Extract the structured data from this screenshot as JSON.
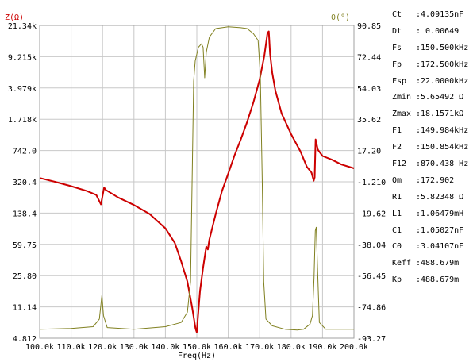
{
  "chart_data": {
    "type": "line",
    "xlabel": "Freq(Hz)",
    "x_ticks": [
      "100.0k",
      "110.0k",
      "120.0k",
      "130.0k",
      "140.0k",
      "150.0k",
      "160.0k",
      "170.0k",
      "180.0k",
      "190.0k",
      "200.0k"
    ],
    "xlim": [
      100000,
      200000
    ],
    "left_axis": {
      "label": "Z(Ω)",
      "scale": "log",
      "ticks": [
        "21.34k",
        "9.215k",
        "3.979k",
        "1.718k",
        "742.0",
        "320.4",
        "138.4",
        "59.75",
        "25.80",
        "11.14",
        "4.812"
      ],
      "ylim": [
        4.812,
        21340
      ],
      "color": "#cc0000"
    },
    "right_axis": {
      "label": "θ(°)",
      "scale": "linear",
      "ticks": [
        "90.85",
        "72.44",
        "54.03",
        "35.62",
        "17.20",
        "-1.210",
        "-19.62",
        "-38.04",
        "-56.45",
        "-74.86",
        "-93.27"
      ],
      "ylim": [
        -93.27,
        90.85
      ],
      "color": "#808020"
    },
    "grid": true,
    "series": [
      {
        "axis": "left",
        "color": "#cc0000",
        "points": [
          [
            100000,
            355
          ],
          [
            105000,
            320
          ],
          [
            110000,
            285
          ],
          [
            115000,
            250
          ],
          [
            118000,
            225
          ],
          [
            119500,
            175
          ],
          [
            120500,
            275
          ],
          [
            121000,
            258
          ],
          [
            125000,
            210
          ],
          [
            130000,
            172
          ],
          [
            135000,
            135
          ],
          [
            140000,
            92
          ],
          [
            143000,
            62
          ],
          [
            145000,
            38
          ],
          [
            147000,
            22
          ],
          [
            148500,
            11
          ],
          [
            149600,
            6.2
          ],
          [
            149984,
            5.65
          ],
          [
            150500,
            10
          ],
          [
            151000,
            17
          ],
          [
            152000,
            32
          ],
          [
            153000,
            56
          ],
          [
            153500,
            52
          ],
          [
            154000,
            68
          ],
          [
            156000,
            135
          ],
          [
            158000,
            250
          ],
          [
            160000,
            400
          ],
          [
            162000,
            650
          ],
          [
            164000,
            1000
          ],
          [
            166000,
            1600
          ],
          [
            168000,
            2700
          ],
          [
            170000,
            5000
          ],
          [
            171500,
            9500
          ],
          [
            172500,
            17500
          ],
          [
            172900,
            18157
          ],
          [
            173300,
            10000
          ],
          [
            174000,
            6000
          ],
          [
            175000,
            3700
          ],
          [
            177000,
            2000
          ],
          [
            180000,
            1150
          ],
          [
            183000,
            720
          ],
          [
            185000,
            480
          ],
          [
            186500,
            410
          ],
          [
            187200,
            330
          ],
          [
            187500,
            360
          ],
          [
            187800,
            1000
          ],
          [
            188500,
            760
          ],
          [
            190000,
            640
          ],
          [
            193000,
            580
          ],
          [
            196000,
            510
          ],
          [
            200000,
            460
          ]
        ]
      },
      {
        "axis": "right",
        "color": "#808020",
        "points": [
          [
            100000,
            -88
          ],
          [
            110000,
            -87.5
          ],
          [
            117000,
            -86.5
          ],
          [
            119000,
            -82
          ],
          [
            119800,
            -68
          ],
          [
            120300,
            -80
          ],
          [
            121500,
            -87
          ],
          [
            130000,
            -88
          ],
          [
            140000,
            -86.5
          ],
          [
            145000,
            -84
          ],
          [
            147000,
            -78
          ],
          [
            148000,
            -60
          ],
          [
            148500,
            0
          ],
          [
            149000,
            58
          ],
          [
            149500,
            70
          ],
          [
            150500,
            78
          ],
          [
            151500,
            80
          ],
          [
            152000,
            78
          ],
          [
            152500,
            60
          ],
          [
            153000,
            75
          ],
          [
            154000,
            84
          ],
          [
            156000,
            89
          ],
          [
            160000,
            90
          ],
          [
            164000,
            89.5
          ],
          [
            166000,
            89
          ],
          [
            168000,
            86
          ],
          [
            169500,
            82
          ],
          [
            170200,
            62
          ],
          [
            170800,
            0
          ],
          [
            171300,
            -60
          ],
          [
            172000,
            -82
          ],
          [
            174000,
            -86
          ],
          [
            178000,
            -88
          ],
          [
            182000,
            -88.5
          ],
          [
            184000,
            -88
          ],
          [
            186000,
            -85
          ],
          [
            186800,
            -80
          ],
          [
            187300,
            -58
          ],
          [
            187700,
            -30
          ],
          [
            188000,
            -28
          ],
          [
            188400,
            -52
          ],
          [
            189000,
            -84
          ],
          [
            191000,
            -88
          ],
          [
            200000,
            -88
          ]
        ]
      }
    ]
  },
  "params": [
    {
      "name": "Ct",
      "value": ":4.09135nF"
    },
    {
      "name": "Dt",
      "value": ": 0.00649"
    },
    {
      "name": "Fs",
      "value": ":150.500kHz"
    },
    {
      "name": "Fp",
      "value": ":172.500kHz"
    },
    {
      "name": "Fsp",
      "value": ":22.0000kHz"
    },
    {
      "name": "Zmin",
      "value": ":5.65492 Ω"
    },
    {
      "name": "Zmax",
      "value": ":18.1571kΩ"
    },
    {
      "name": "F1",
      "value": ":149.984kHz"
    },
    {
      "name": "F2",
      "value": ":150.854kHz"
    },
    {
      "name": "F12",
      "value": ":870.438 Hz"
    },
    {
      "name": "Qm",
      "value": ":172.902"
    },
    {
      "name": "R1",
      "value": ":5.82348 Ω"
    },
    {
      "name": "L1",
      "value": ":1.06479mH"
    },
    {
      "name": "C1",
      "value": ":1.05027nF"
    },
    {
      "name": "C0",
      "value": ":3.04107nF"
    },
    {
      "name": "Keff",
      "value": ":488.679m"
    },
    {
      "name": "Kp",
      "value": ":488.679m"
    }
  ]
}
